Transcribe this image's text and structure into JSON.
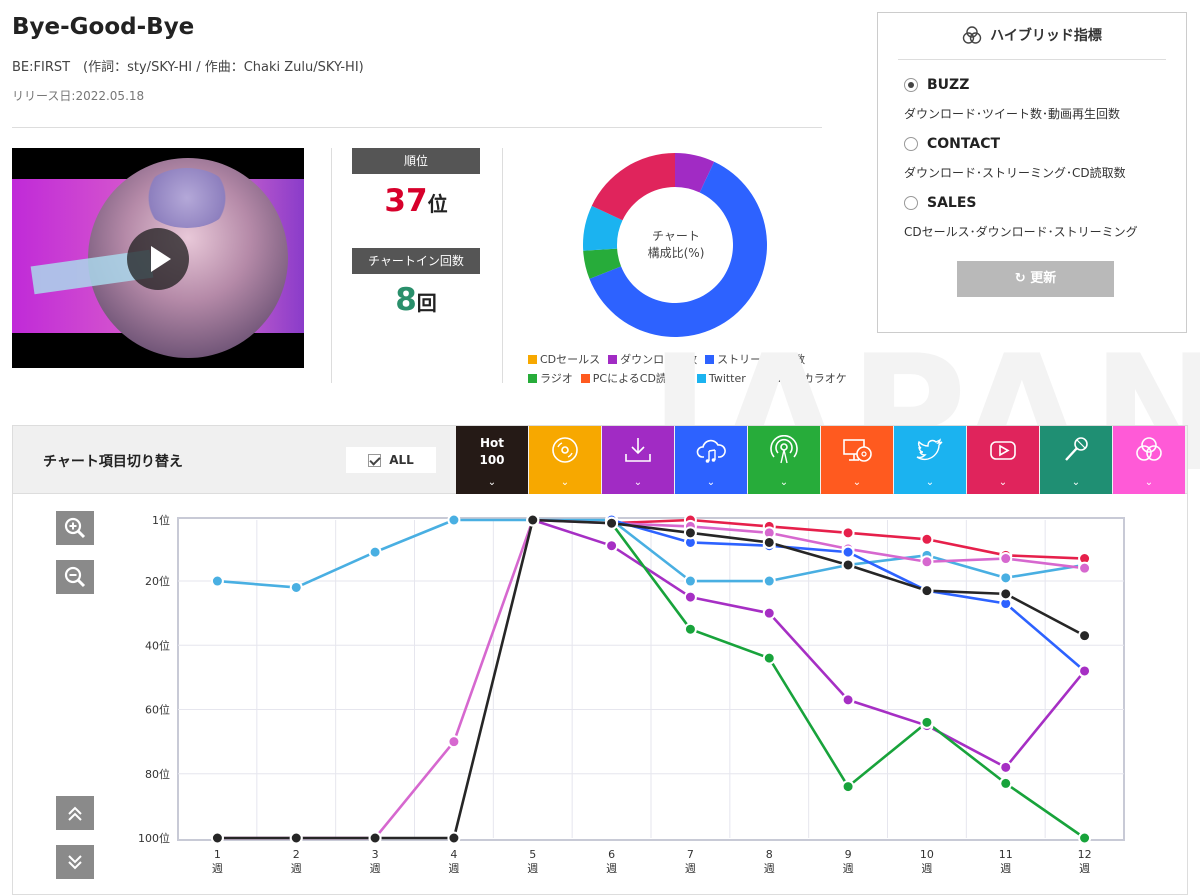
{
  "song": {
    "title": "Bye-Good-Bye",
    "credits": "BE:FIRST　(作詞：sty/SKY-HI / 作曲：Chaki Zulu/SKY-HI)",
    "release": "リリース日:2022.05.18"
  },
  "rank": {
    "label": "順位",
    "value": "37",
    "unit": "位",
    "value_color": "#d7002b"
  },
  "chart_in": {
    "label": "チャートイン回数",
    "value": "8",
    "unit": "回",
    "value_color": "#2a8f6b"
  },
  "composition": {
    "center_line1": "チャート",
    "center_line2": "構成比(%)",
    "segments": [
      {
        "name": "ダウンロード数",
        "value": 7,
        "color": "#a12bc4"
      },
      {
        "name": "ストリーミング数",
        "value": 62,
        "color": "#2d62ff"
      },
      {
        "name": "ラジオ",
        "value": 5,
        "color": "#27ac3a"
      },
      {
        "name": "Twitter",
        "value": 8,
        "color": "#1bb3f0"
      },
      {
        "name": "MV",
        "value": 18,
        "color": "#e0245c"
      }
    ],
    "legend_row1": [
      {
        "label": "CDセールス",
        "color": "#f7a800"
      },
      {
        "label": "ダウンロード数",
        "color": "#a12bc4"
      },
      {
        "label": "ストリーミング数",
        "color": "#2d62ff"
      }
    ],
    "legend_row2": [
      {
        "label": "ラジオ",
        "color": "#27ac3a"
      },
      {
        "label": "PCによるCD読取数",
        "color": "#ff5a1f"
      },
      {
        "label": "Twitter",
        "color": "#1bb3f0"
      },
      {
        "label": "MV",
        "color": "#e0245c"
      },
      {
        "label": "カラオケ",
        "color": "#1f8f73"
      }
    ]
  },
  "hybrid": {
    "title": "ハイブリッド指標",
    "options": [
      {
        "label": "BUZZ",
        "desc": "ダウンロード･ツイート数･動画再生回数",
        "selected": true
      },
      {
        "label": "CONTACT",
        "desc": "ダウンロード･ストリーミング･CD読取数",
        "selected": false
      },
      {
        "label": "SALES",
        "desc": "CDセールス･ダウンロード･ストリーミング",
        "selected": false
      }
    ],
    "refresh_label": "更新"
  },
  "switcher": {
    "title": "チャート項目切り替え",
    "all_label": "ALL",
    "tabs": [
      {
        "name": "hot100",
        "label_line1": "Hot",
        "label_line2": "100",
        "color": "#251a16",
        "icon": "hot100-icon"
      },
      {
        "name": "cd-sales",
        "color": "#f7a800",
        "icon": "cd-icon"
      },
      {
        "name": "download",
        "color": "#a12bc4",
        "icon": "download-icon"
      },
      {
        "name": "streaming",
        "color": "#2d62ff",
        "icon": "cloud-music-icon"
      },
      {
        "name": "radio",
        "color": "#27ac3a",
        "icon": "radio-icon"
      },
      {
        "name": "pc-cd-read",
        "color": "#ff5a1f",
        "icon": "pc-cd-icon"
      },
      {
        "name": "twitter",
        "color": "#1bb3f0",
        "icon": "twitter-icon"
      },
      {
        "name": "mv",
        "color": "#e0245c",
        "icon": "youtube-icon"
      },
      {
        "name": "karaoke",
        "color": "#1f8f73",
        "icon": "microphone-icon"
      },
      {
        "name": "hybrid",
        "color": "#ff5ad7",
        "icon": "hybrid-icon"
      }
    ]
  },
  "watermark": "JAPAN",
  "chart_data": {
    "type": "line",
    "x": [
      "1",
      "2",
      "3",
      "4",
      "5",
      "6",
      "7",
      "8",
      "9",
      "10",
      "11",
      "12"
    ],
    "x_unit": "週",
    "y_ticks": [
      "1位",
      "20位",
      "40位",
      "60位",
      "80位",
      "100位"
    ],
    "ylim": [
      1,
      100
    ],
    "y_reversed": true,
    "grid": true,
    "series": [
      {
        "key": "twitter",
        "color": "#49afe2",
        "values": [
          20,
          22,
          11,
          1,
          1,
          1,
          20,
          20,
          15,
          12,
          19,
          15
        ]
      },
      {
        "key": "mv",
        "color": "#e6204b",
        "values": [
          null,
          null,
          null,
          null,
          null,
          2,
          1,
          3,
          5,
          7,
          12,
          13
        ]
      },
      {
        "key": "hybrid",
        "color": "#d668cf",
        "values": [
          100,
          100,
          100,
          70,
          1,
          2,
          3,
          5,
          10,
          14,
          13,
          16
        ]
      },
      {
        "key": "streaming",
        "color": "#2d62ff",
        "values": [
          null,
          null,
          null,
          null,
          null,
          1,
          8,
          9,
          11,
          23,
          27,
          48
        ]
      },
      {
        "key": "download",
        "color": "#a62fc4",
        "values": [
          null,
          null,
          null,
          null,
          1,
          9,
          25,
          30,
          57,
          65,
          78,
          48
        ]
      },
      {
        "key": "radio",
        "color": "#18a33b",
        "values": [
          null,
          null,
          null,
          null,
          null,
          2,
          35,
          44,
          84,
          64,
          83,
          100
        ]
      },
      {
        "key": "hot100",
        "color": "#262626",
        "values": [
          100,
          100,
          100,
          100,
          1,
          2,
          5,
          8,
          15,
          23,
          24,
          37
        ]
      }
    ]
  }
}
